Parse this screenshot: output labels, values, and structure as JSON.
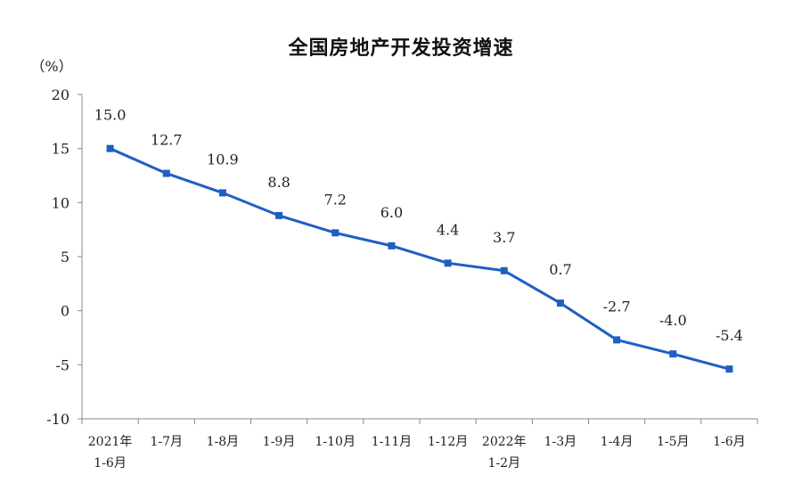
{
  "chart_data": {
    "type": "line",
    "title": "全国房地产开发投资增速",
    "unit_label": "（%）",
    "categories": [
      "2021年\n1-6月",
      "1-7月",
      "1-8月",
      "1-9月",
      "1-10月",
      "1-11月",
      "1-12月",
      "2022年\n1-2月",
      "1-3月",
      "1-4月",
      "1-5月",
      "1-6月"
    ],
    "values": [
      15.0,
      12.7,
      10.9,
      8.8,
      7.2,
      6.0,
      4.4,
      3.7,
      0.7,
      -2.7,
      -4.0,
      -5.4
    ],
    "data_labels": [
      "15.0",
      "12.7",
      "10.9",
      "8.8",
      "7.2",
      "6.0",
      "4.4",
      "3.7",
      "0.7",
      "-2.7",
      "-4.0",
      "-5.4"
    ],
    "ylim": [
      -10,
      20
    ],
    "yticks": [
      20,
      15,
      10,
      5,
      0,
      -5,
      -10
    ],
    "grid": false,
    "colors": {
      "line": "#1f5fc4",
      "axis": "#888888"
    }
  }
}
